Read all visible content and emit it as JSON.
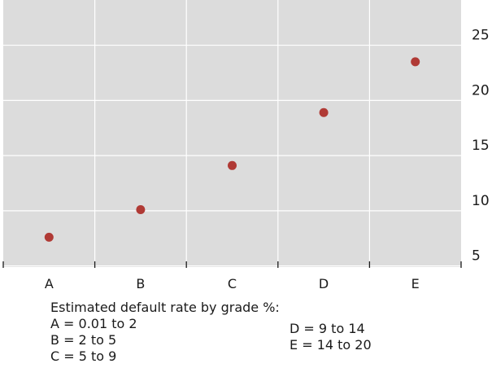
{
  "chart_data": {
    "type": "scatter",
    "title": "",
    "xlabel": "",
    "ylabel": "",
    "categories": [
      "A",
      "B",
      "C",
      "D",
      "E"
    ],
    "values": [
      7.6,
      10.1,
      14.1,
      18.9,
      23.5
    ],
    "ylim": [
      4.9,
      29.1
    ],
    "yticks": [
      5,
      10,
      15,
      20,
      25
    ],
    "y_axis_side": "right",
    "grid": true,
    "colors": {
      "plot_background": "#dcdcdc",
      "grid": "#ffffff",
      "point": "#b03a35",
      "text": "#1a1a1a"
    }
  },
  "legend": {
    "title": "Estimated default rate by grade %:",
    "left_items": [
      "A = 0.01 to 2",
      "B = 2 to 5",
      "C = 5 to 9"
    ],
    "right_items": [
      "D = 9 to 14",
      "E = 14 to 20"
    ]
  }
}
